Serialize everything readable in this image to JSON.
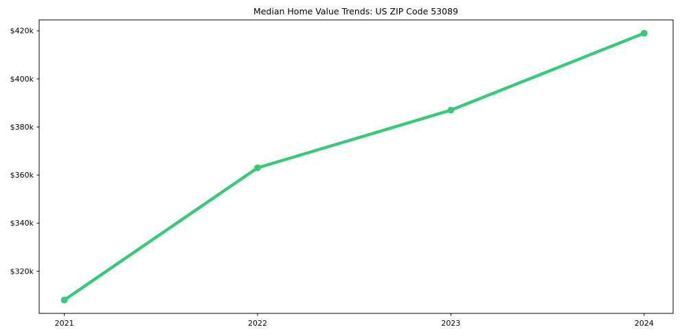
{
  "figure": {
    "background": "#ffffff"
  },
  "chart_data": {
    "type": "line",
    "title": "Median Home Value Trends: US ZIP Code 53089",
    "x": [
      2021,
      2022,
      2023,
      2024
    ],
    "x_tick_labels": [
      "2021",
      "2022",
      "2023",
      "2024"
    ],
    "values": [
      308000,
      363000,
      387000,
      419000
    ],
    "y_tick_values": [
      320000,
      340000,
      360000,
      380000,
      400000,
      420000
    ],
    "y_tick_labels": [
      "$320k",
      "$340k",
      "$360k",
      "$380k",
      "$400k",
      "$420k"
    ],
    "xlim": [
      2020.87,
      2024.15
    ],
    "ylim": [
      302450,
      424550
    ],
    "grid": false,
    "legend": "none",
    "line_color": "#3ac87c",
    "marker": "circle",
    "line_width": 4.5,
    "marker_radius": 5,
    "axis_color": "#000000",
    "text_color": "#000000"
  }
}
